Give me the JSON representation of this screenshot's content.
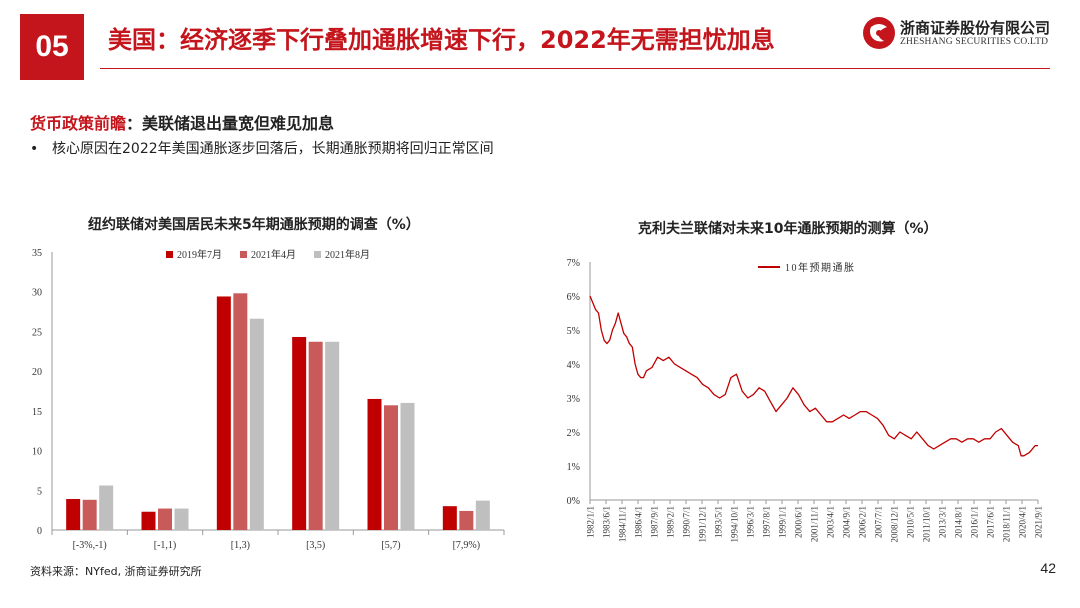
{
  "header": {
    "section_number": "05",
    "title": "美国：经济逐季下行叠加通胀增速下行，2022年无需担忧加息",
    "logo_cn": "浙商证券股份有限公司",
    "logo_en": "ZHESHANG SECURITIES CO.LTD"
  },
  "content": {
    "subhead_red": "货币政策前瞻",
    "subhead_black": "：美联储退出量宽但难见加息",
    "bullet_dot": "•",
    "bullet": "核心原因在2022年美国通胀逐步回落后，长期通胀预期将回归正常区间"
  },
  "footer": {
    "source": "资料来源：NYfed, 浙商证券研究所",
    "page_number": "42"
  },
  "colors": {
    "accent": "#c4151c",
    "series1": "#c00000",
    "series2": "#c85a5a",
    "series3": "#bfbfbf"
  },
  "chart_data": [
    {
      "type": "bar",
      "title": "纽约联储对美国居民未来5年期通胀预期的调查（%）",
      "categories": [
        "[-3%,-1)",
        "[-1,1)",
        "[1,3)",
        "[3,5)",
        "[5,7)",
        "[7,9%)"
      ],
      "series": [
        {
          "name": "2019年7月",
          "values": [
            3.9,
            2.3,
            29.4,
            24.3,
            16.5,
            3.0
          ]
        },
        {
          "name": "2021年4月",
          "values": [
            3.8,
            2.7,
            29.8,
            23.7,
            15.7,
            2.4
          ]
        },
        {
          "name": "2021年8月",
          "values": [
            5.6,
            2.7,
            26.6,
            23.7,
            16.0,
            3.7
          ]
        }
      ],
      "ylim": [
        0,
        35
      ],
      "yticks": [
        "0",
        "5",
        "10",
        "15",
        "20",
        "25",
        "30",
        "35"
      ],
      "legend": "top-center",
      "xlabel": "",
      "ylabel": ""
    },
    {
      "type": "line",
      "title": "克利夫兰联储对未来10年通胀预期的测算（%）",
      "series": [
        {
          "name": "10年预期通胀",
          "x": [
            1982.0,
            1982.25,
            1982.5,
            1982.75,
            1983.0,
            1983.25,
            1983.5,
            1983.75,
            1984.0,
            1984.25,
            1984.5,
            1984.75,
            1985.0,
            1985.25,
            1985.5,
            1985.75,
            1986.0,
            1986.25,
            1986.5,
            1986.75,
            1987.0,
            1987.5,
            1988.0,
            1988.5,
            1989.0,
            1989.5,
            1990.0,
            1990.5,
            1991.0,
            1991.5,
            1992.0,
            1992.5,
            1993.0,
            1993.5,
            1994.0,
            1994.5,
            1995.0,
            1995.5,
            1996.0,
            1996.5,
            1997.0,
            1997.5,
            1998.0,
            1998.5,
            1999.0,
            1999.5,
            2000.0,
            2000.5,
            2001.0,
            2001.5,
            2002.0,
            2002.5,
            2003.0,
            2003.5,
            2004.0,
            2004.5,
            2005.0,
            2005.5,
            2006.0,
            2006.5,
            2007.0,
            2007.5,
            2008.0,
            2008.5,
            2009.0,
            2009.5,
            2010.0,
            2010.5,
            2011.0,
            2011.5,
            2012.0,
            2012.5,
            2013.0,
            2013.5,
            2014.0,
            2014.5,
            2015.0,
            2015.5,
            2016.0,
            2016.5,
            2017.0,
            2017.5,
            2018.0,
            2018.5,
            2019.0,
            2019.5,
            2020.0,
            2020.25,
            2020.5,
            2021.0,
            2021.5,
            2021.75
          ],
          "y": [
            6.0,
            5.8,
            5.6,
            5.5,
            5.0,
            4.7,
            4.6,
            4.7,
            5.0,
            5.2,
            5.5,
            5.2,
            4.9,
            4.8,
            4.6,
            4.5,
            4.0,
            3.7,
            3.6,
            3.6,
            3.8,
            3.9,
            4.2,
            4.1,
            4.2,
            4.0,
            3.9,
            3.8,
            3.7,
            3.6,
            3.4,
            3.3,
            3.1,
            3.0,
            3.1,
            3.6,
            3.7,
            3.2,
            3.0,
            3.1,
            3.3,
            3.2,
            2.9,
            2.6,
            2.8,
            3.0,
            3.3,
            3.1,
            2.8,
            2.6,
            2.7,
            2.5,
            2.3,
            2.3,
            2.4,
            2.5,
            2.4,
            2.5,
            2.6,
            2.6,
            2.5,
            2.4,
            2.2,
            1.9,
            1.8,
            2.0,
            1.9,
            1.8,
            2.0,
            1.8,
            1.6,
            1.5,
            1.6,
            1.7,
            1.8,
            1.8,
            1.7,
            1.8,
            1.8,
            1.7,
            1.8,
            1.8,
            2.0,
            2.1,
            1.9,
            1.7,
            1.6,
            1.3,
            1.3,
            1.4,
            1.6,
            1.6
          ]
        }
      ],
      "ylim": [
        0,
        7
      ],
      "yticks": [
        "0%",
        "1%",
        "2%",
        "3%",
        "4%",
        "5%",
        "6%",
        "7%"
      ],
      "x_tick_labels": [
        "1982/1/1",
        "1983/6/1",
        "1984/11/1",
        "1986/4/1",
        "1987/9/1",
        "1989/2/1",
        "1990/7/1",
        "1991/12/1",
        "1993/5/1",
        "1994/10/1",
        "1996/3/1",
        "1997/8/1",
        "1999/1/1",
        "2000/6/1",
        "2001/11/1",
        "2003/4/1",
        "2004/9/1",
        "2006/2/1",
        "2007/7/1",
        "2008/12/1",
        "2010/5/1",
        "2011/10/1",
        "2013/3/1",
        "2014/8/1",
        "2016/1/1",
        "2017/6/1",
        "2018/11/1",
        "2020/4/1",
        "2021/9/1"
      ],
      "xlim": [
        1982.0,
        2021.75
      ],
      "legend": "top-left"
    }
  ]
}
